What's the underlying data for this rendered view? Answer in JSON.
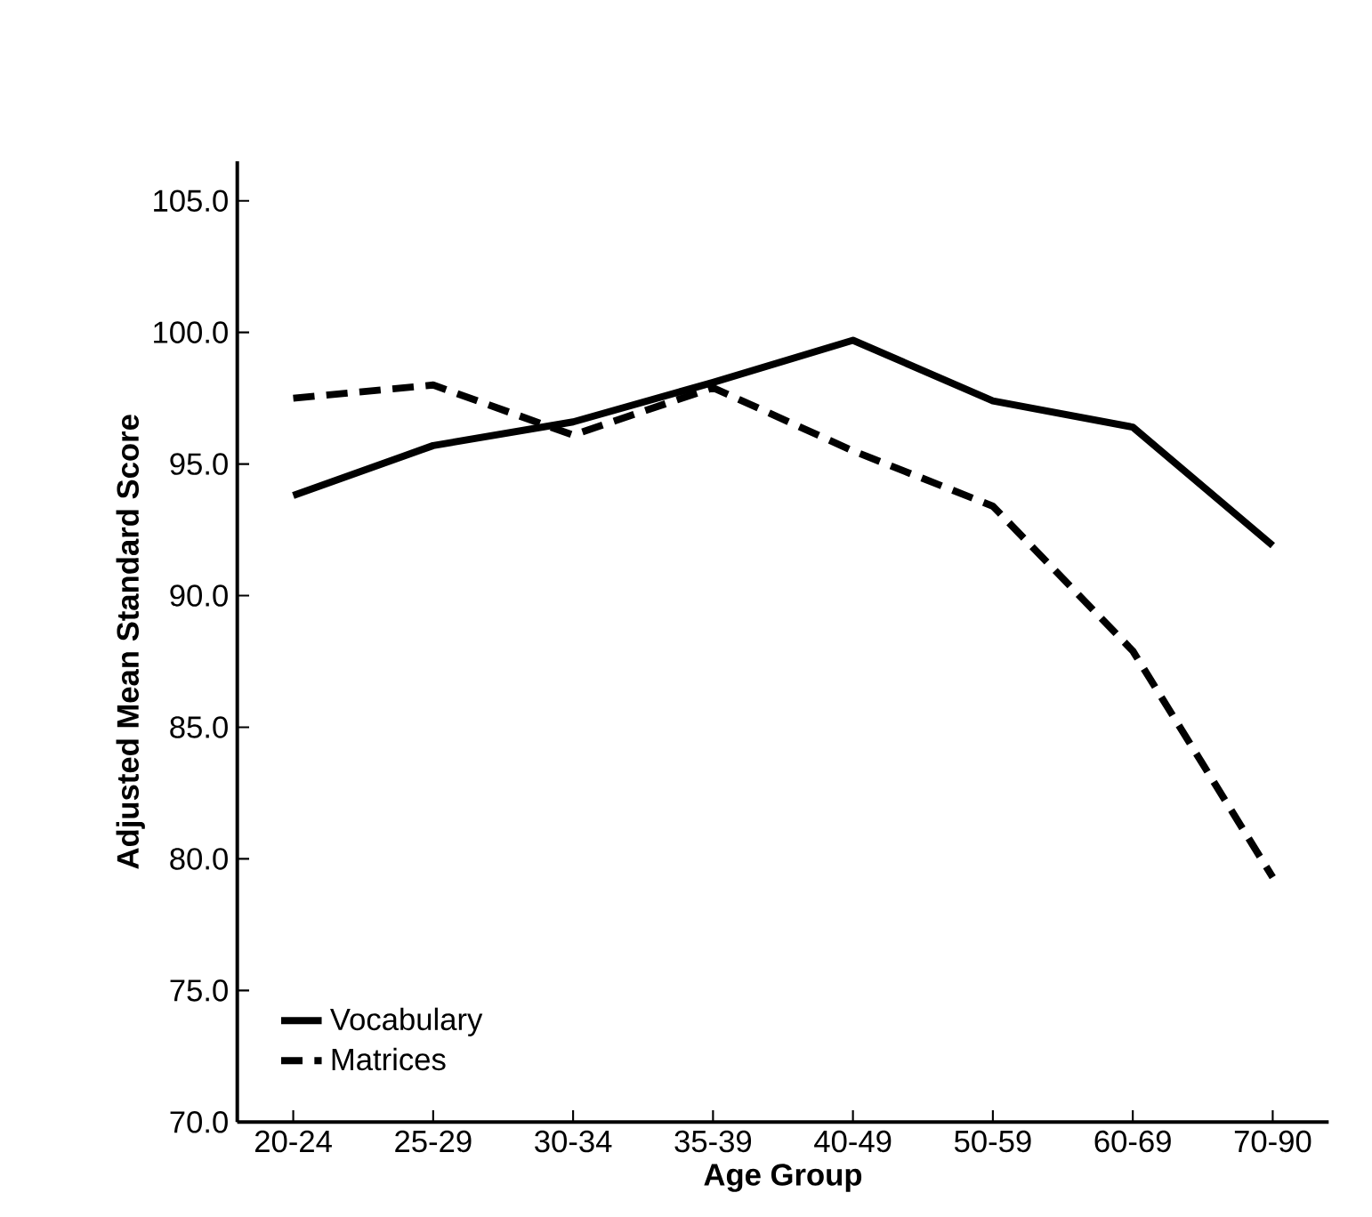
{
  "chart_data": {
    "type": "line",
    "xlabel": "Age Group",
    "ylabel": "Adjusted Mean Standard Score",
    "categories": [
      "20-24",
      "25-29",
      "30-34",
      "35-39",
      "40-49",
      "50-59",
      "60-69",
      "70-90"
    ],
    "series": [
      {
        "name": "Vocabulary",
        "color": "#000000",
        "line_style": "solid",
        "values": [
          93.8,
          95.7,
          96.6,
          98.1,
          99.7,
          97.4,
          96.4,
          91.9
        ]
      },
      {
        "name": "Matrices",
        "color": "#000000",
        "line_style": "dashed",
        "values": [
          97.5,
          98.0,
          96.1,
          97.9,
          95.5,
          93.4,
          87.9,
          79.3
        ]
      }
    ],
    "ylim": [
      70,
      106.5
    ],
    "yticks": [
      {
        "value": 70,
        "label": "70.0"
      },
      {
        "value": 75,
        "label": "75.0"
      },
      {
        "value": 80,
        "label": "80.0"
      },
      {
        "value": 85,
        "label": "85.0"
      },
      {
        "value": 90,
        "label": "90.0"
      },
      {
        "value": 95,
        "label": "95.0"
      },
      {
        "value": 100,
        "label": "100.0"
      },
      {
        "value": 105,
        "label": "105.0"
      }
    ],
    "grid": false,
    "legend": "bottom left",
    "marker": "none"
  }
}
